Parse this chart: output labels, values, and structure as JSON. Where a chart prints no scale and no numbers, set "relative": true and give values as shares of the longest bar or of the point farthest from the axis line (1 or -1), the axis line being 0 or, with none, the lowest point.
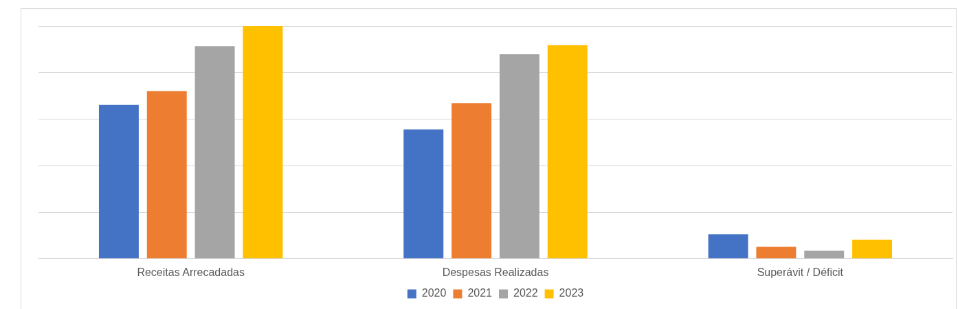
{
  "chart_data": {
    "type": "bar",
    "relative": true,
    "categories": [
      "Receitas Arrecadadas",
      "Despesas Realizadas",
      "Superávit / Déficit"
    ],
    "series": [
      {
        "name": "2020",
        "color": "#4472c4",
        "values": [
          0.661,
          0.556,
          0.105
        ]
      },
      {
        "name": "2021",
        "color": "#ed7d31",
        "values": [
          0.72,
          0.669,
          0.051
        ]
      },
      {
        "name": "2022",
        "color": "#a5a5a5",
        "values": [
          0.914,
          0.879,
          0.035
        ]
      },
      {
        "name": "2023",
        "color": "#ffc000",
        "values": [
          1,
          0.918,
          0.082
        ]
      }
    ],
    "grid": "y",
    "legend": "bottom"
  }
}
